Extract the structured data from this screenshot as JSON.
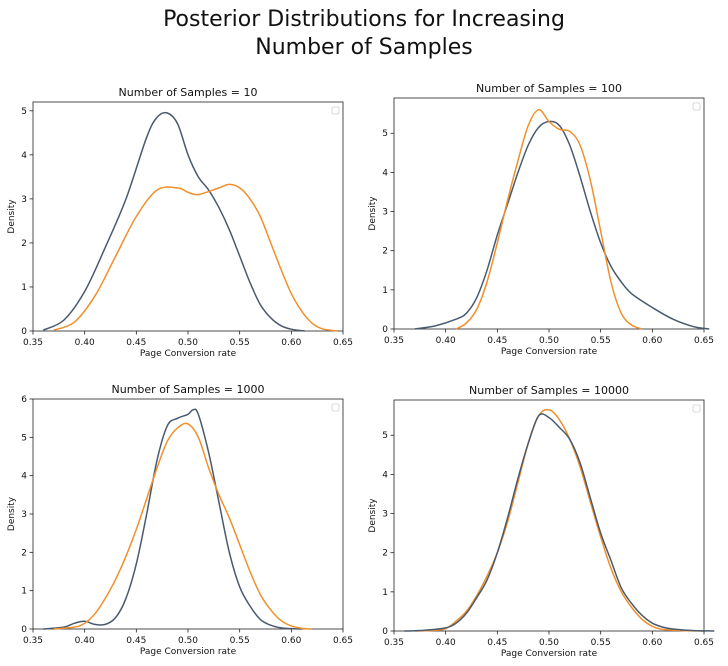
{
  "figure": {
    "title_line1": "Posterior Distributions for Increasing",
    "title_line2": "Number of Samples"
  },
  "colors": {
    "series_a": "#4a5a6e",
    "series_b": "#f0902a",
    "axis": "#222222"
  },
  "chart_data": [
    {
      "type": "line",
      "title": "Number of Samples = 10",
      "xlabel": "Page Conversion rate",
      "ylabel": "Density",
      "xlim": [
        0.35,
        0.65
      ],
      "ylim": [
        0,
        5.2
      ],
      "xticks": [
        0.35,
        0.4,
        0.45,
        0.5,
        0.55,
        0.6,
        0.65
      ],
      "xtick_labels": [
        "0.35",
        "0.40",
        "0.45",
        "0.50",
        "0.55",
        "0.60",
        "0.65"
      ],
      "yticks": [
        0,
        1,
        2,
        3,
        4,
        5
      ],
      "ytick_labels": [
        "0",
        "1",
        "2",
        "3",
        "4",
        "5"
      ],
      "legend": "top-right (empty)",
      "grid": false,
      "series": [
        {
          "color": "#4a5a6e",
          "x": [
            0.36,
            0.38,
            0.4,
            0.42,
            0.44,
            0.46,
            0.47,
            0.48,
            0.49,
            0.5,
            0.51,
            0.52,
            0.53,
            0.54,
            0.55,
            0.56,
            0.57,
            0.58,
            0.59,
            0.6,
            0.613
          ],
          "y": [
            0.02,
            0.25,
            0.9,
            1.9,
            3.0,
            4.4,
            4.85,
            4.95,
            4.7,
            4.0,
            3.5,
            3.2,
            2.8,
            2.3,
            1.7,
            1.1,
            0.6,
            0.3,
            0.12,
            0.04,
            0.0
          ]
        },
        {
          "color": "#f0902a",
          "x": [
            0.37,
            0.39,
            0.41,
            0.43,
            0.45,
            0.47,
            0.49,
            0.5,
            0.51,
            0.53,
            0.54,
            0.55,
            0.56,
            0.57,
            0.58,
            0.59,
            0.6,
            0.61,
            0.62,
            0.63,
            0.645
          ],
          "y": [
            0.02,
            0.2,
            0.8,
            1.7,
            2.6,
            3.2,
            3.25,
            3.15,
            3.1,
            3.25,
            3.33,
            3.25,
            3.0,
            2.6,
            2.0,
            1.4,
            0.85,
            0.45,
            0.18,
            0.05,
            0.0
          ]
        }
      ]
    },
    {
      "type": "line",
      "title": "Number of Samples = 100",
      "xlabel": "Page Conversion rate",
      "ylabel": "Density",
      "xlim": [
        0.35,
        0.65
      ],
      "ylim": [
        0,
        5.9
      ],
      "xticks": [
        0.35,
        0.4,
        0.45,
        0.5,
        0.55,
        0.6,
        0.65
      ],
      "xtick_labels": [
        "0.35",
        "0.40",
        "0.45",
        "0.50",
        "0.55",
        "0.60",
        "0.65"
      ],
      "yticks": [
        0,
        1,
        2,
        3,
        4,
        5
      ],
      "ytick_labels": [
        "0",
        "1",
        "2",
        "3",
        "4",
        "5"
      ],
      "legend": "top-right (empty)",
      "grid": false,
      "series": [
        {
          "color": "#4a5a6e",
          "x": [
            0.37,
            0.39,
            0.41,
            0.42,
            0.43,
            0.44,
            0.45,
            0.46,
            0.47,
            0.48,
            0.49,
            0.5,
            0.51,
            0.52,
            0.53,
            0.54,
            0.55,
            0.56,
            0.57,
            0.58,
            0.6,
            0.62,
            0.64,
            0.655
          ],
          "y": [
            0.0,
            0.08,
            0.25,
            0.4,
            0.8,
            1.5,
            2.4,
            3.2,
            4.0,
            4.7,
            5.15,
            5.3,
            5.2,
            4.7,
            3.9,
            3.0,
            2.2,
            1.6,
            1.2,
            0.9,
            0.55,
            0.25,
            0.06,
            0.0
          ]
        },
        {
          "color": "#f0902a",
          "x": [
            0.41,
            0.42,
            0.43,
            0.44,
            0.45,
            0.46,
            0.47,
            0.48,
            0.49,
            0.5,
            0.51,
            0.52,
            0.53,
            0.54,
            0.55,
            0.56,
            0.57,
            0.58,
            0.59
          ],
          "y": [
            0.0,
            0.15,
            0.5,
            1.2,
            2.2,
            3.3,
            4.3,
            5.2,
            5.6,
            5.3,
            5.1,
            5.05,
            4.7,
            3.8,
            2.5,
            1.2,
            0.4,
            0.1,
            0.0
          ]
        }
      ]
    },
    {
      "type": "line",
      "title": "Number of Samples = 1000",
      "xlabel": "Page Conversion rate",
      "ylabel": "Density",
      "xlim": [
        0.35,
        0.65
      ],
      "ylim": [
        0,
        6
      ],
      "xticks": [
        0.35,
        0.4,
        0.45,
        0.5,
        0.55,
        0.6,
        0.65
      ],
      "xtick_labels": [
        "0.35",
        "0.40",
        "0.45",
        "0.50",
        "0.55",
        "0.60",
        "0.65"
      ],
      "yticks": [
        0,
        1,
        2,
        3,
        4,
        5,
        6
      ],
      "ytick_labels": [
        "0",
        "1",
        "2",
        "3",
        "4",
        "5",
        "6"
      ],
      "legend": "top-right (empty)",
      "grid": false,
      "series": [
        {
          "color": "#4a5a6e",
          "x": [
            0.36,
            0.38,
            0.39,
            0.4,
            0.41,
            0.42,
            0.43,
            0.44,
            0.45,
            0.46,
            0.47,
            0.48,
            0.49,
            0.5,
            0.505,
            0.51,
            0.52,
            0.53,
            0.54,
            0.55,
            0.56,
            0.57,
            0.58,
            0.59,
            0.6,
            0.61
          ],
          "y": [
            0.0,
            0.05,
            0.15,
            0.2,
            0.12,
            0.12,
            0.3,
            0.8,
            1.7,
            3.0,
            4.4,
            5.3,
            5.5,
            5.6,
            5.72,
            5.6,
            4.6,
            3.3,
            2.0,
            1.1,
            0.6,
            0.25,
            0.1,
            0.03,
            0.01,
            0.0
          ]
        },
        {
          "color": "#f0902a",
          "x": [
            0.37,
            0.39,
            0.4,
            0.41,
            0.42,
            0.43,
            0.44,
            0.45,
            0.46,
            0.47,
            0.48,
            0.49,
            0.5,
            0.51,
            0.52,
            0.53,
            0.54,
            0.55,
            0.56,
            0.57,
            0.58,
            0.59,
            0.6,
            0.61,
            0.62
          ],
          "y": [
            0.0,
            0.05,
            0.15,
            0.4,
            0.8,
            1.3,
            1.9,
            2.6,
            3.4,
            4.2,
            4.9,
            5.25,
            5.35,
            5.0,
            4.2,
            3.5,
            2.9,
            2.2,
            1.5,
            0.9,
            0.5,
            0.22,
            0.08,
            0.02,
            0.0
          ]
        }
      ]
    },
    {
      "type": "line",
      "title": "Number of Samples = 10000",
      "xlabel": "Page Conversion rate",
      "ylabel": "Density",
      "xlim": [
        0.35,
        0.65
      ],
      "ylim": [
        0,
        5.9
      ],
      "xticks": [
        0.35,
        0.4,
        0.45,
        0.5,
        0.55,
        0.6,
        0.65
      ],
      "xtick_labels": [
        "0.35",
        "0.40",
        "0.45",
        "0.50",
        "0.55",
        "0.60",
        "0.65"
      ],
      "yticks": [
        0,
        1,
        2,
        3,
        4,
        5
      ],
      "ytick_labels": [
        "0",
        "1",
        "2",
        "3",
        "4",
        "5"
      ],
      "legend": "top-right (empty)",
      "grid": false,
      "series": [
        {
          "color": "#f0902a",
          "x": [
            0.37,
            0.39,
            0.4,
            0.41,
            0.42,
            0.43,
            0.44,
            0.45,
            0.46,
            0.47,
            0.48,
            0.49,
            0.5,
            0.51,
            0.52,
            0.53,
            0.54,
            0.55,
            0.56,
            0.57,
            0.58,
            0.59,
            0.6,
            0.61,
            0.63,
            0.65
          ],
          "y": [
            0.0,
            0.02,
            0.06,
            0.25,
            0.5,
            0.9,
            1.4,
            2.0,
            2.8,
            3.8,
            4.8,
            5.5,
            5.65,
            5.4,
            4.9,
            4.2,
            3.3,
            2.4,
            1.6,
            1.0,
            0.6,
            0.3,
            0.12,
            0.04,
            0.01,
            0.0
          ]
        },
        {
          "color": "#4a5a6e",
          "x": [
            0.36,
            0.38,
            0.4,
            0.41,
            0.42,
            0.43,
            0.44,
            0.45,
            0.46,
            0.47,
            0.48,
            0.49,
            0.5,
            0.51,
            0.52,
            0.53,
            0.54,
            0.55,
            0.56,
            0.57,
            0.58,
            0.59,
            0.6,
            0.61,
            0.62,
            0.64,
            0.66
          ],
          "y": [
            0.0,
            0.02,
            0.08,
            0.2,
            0.45,
            0.85,
            1.3,
            2.0,
            2.9,
            3.9,
            4.8,
            5.5,
            5.45,
            5.2,
            4.9,
            4.3,
            3.4,
            2.5,
            1.8,
            1.1,
            0.7,
            0.4,
            0.2,
            0.1,
            0.05,
            0.01,
            0.0
          ]
        }
      ]
    }
  ]
}
